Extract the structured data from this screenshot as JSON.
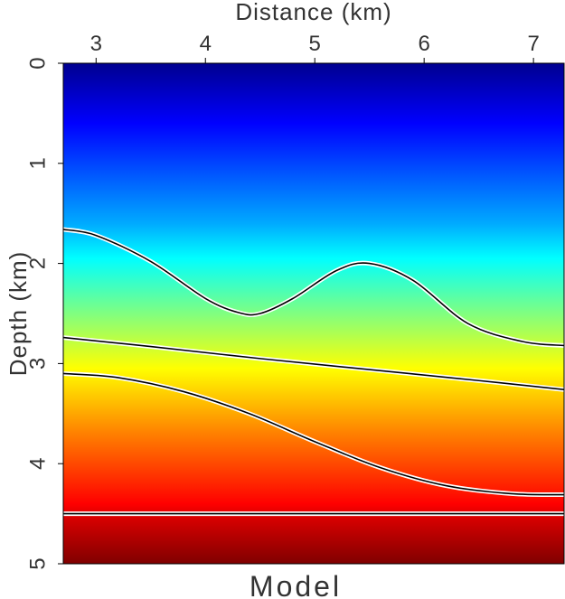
{
  "chart_data": {
    "type": "heatmap",
    "title": "Model",
    "xlabel": "Distance (km)",
    "ylabel": "Depth (km)",
    "xlim": [
      2.7,
      7.28
    ],
    "ylim": [
      0,
      5
    ],
    "y_inverted": true,
    "x_axis_position": "top",
    "x_ticks": [
      3,
      4,
      5,
      6,
      7
    ],
    "y_ticks": [
      0,
      1,
      2,
      3,
      4,
      5
    ],
    "x_tick_labels": [
      "3",
      "4",
      "5",
      "6",
      "7"
    ],
    "y_tick_labels": [
      "0",
      "1",
      "2",
      "3",
      "4",
      "5"
    ],
    "colormap": "jet",
    "color_stops": [
      {
        "depth": 0.0,
        "color": "#00008f"
      },
      {
        "depth": 0.6,
        "color": "#0000ff"
      },
      {
        "depth": 1.6,
        "color": "#00aaff"
      },
      {
        "depth": 1.95,
        "color": "#00ffff"
      },
      {
        "depth": 2.5,
        "color": "#80ff80"
      },
      {
        "depth": 3.05,
        "color": "#ffff00"
      },
      {
        "depth": 3.7,
        "color": "#ff8000"
      },
      {
        "depth": 4.4,
        "color": "#ff0000"
      },
      {
        "depth": 4.5,
        "color": "#e00000"
      },
      {
        "depth": 5.0,
        "color": "#800000"
      }
    ],
    "reflectors": [
      {
        "x": [
          2.7,
          3.0,
          3.5,
          4.0,
          4.3,
          4.5,
          4.8,
          5.2,
          5.5,
          5.9,
          6.4,
          6.9,
          7.28
        ],
        "y": [
          1.66,
          1.72,
          1.98,
          2.35,
          2.49,
          2.5,
          2.35,
          2.07,
          2.0,
          2.17,
          2.6,
          2.78,
          2.82
        ]
      },
      {
        "x": [
          2.7,
          3.5,
          4.5,
          5.5,
          6.5,
          7.28
        ],
        "y": [
          2.74,
          2.83,
          2.95,
          3.06,
          3.17,
          3.26
        ]
      },
      {
        "x": [
          2.7,
          3.2,
          3.8,
          4.4,
          5.0,
          5.6,
          6.2,
          6.8,
          7.28
        ],
        "y": [
          3.1,
          3.14,
          3.28,
          3.5,
          3.78,
          4.04,
          4.22,
          4.3,
          4.31
        ]
      },
      {
        "x": [
          2.7,
          7.28
        ],
        "y": [
          4.5,
          4.5
        ]
      }
    ]
  }
}
